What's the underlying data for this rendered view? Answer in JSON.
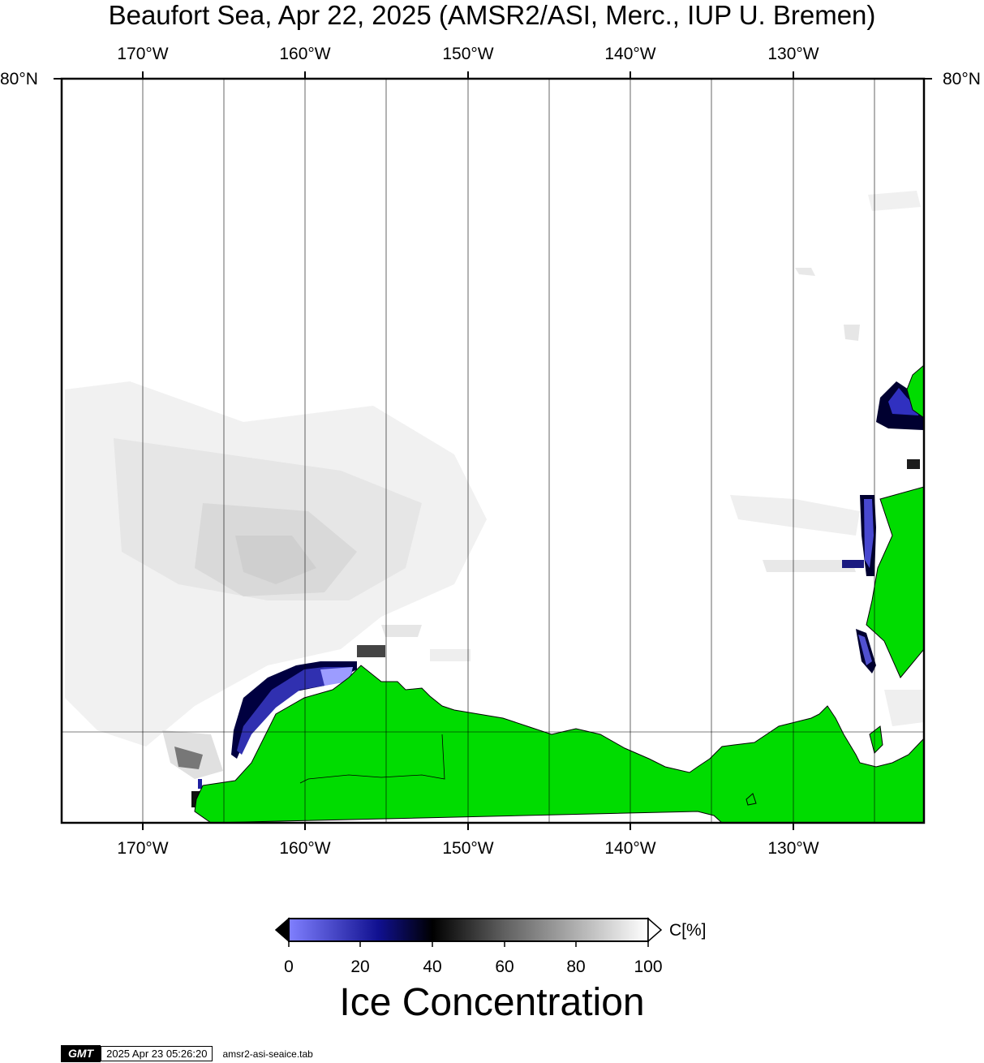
{
  "title": "Beaufort Sea, Apr 22, 2025 (AMSR2/ASI, Merc., IUP U. Bremen)",
  "lon_labels": [
    "170°W",
    "160°W",
    "150°W",
    "140°W",
    "130°W"
  ],
  "lat_labels": {
    "left": "80°N",
    "right": "80°N"
  },
  "colorbar": {
    "ticks": [
      "0",
      "20",
      "40",
      "60",
      "80",
      "100"
    ],
    "unit": "C[%]",
    "title": "Ice Concentration",
    "colors": [
      "#8080ff",
      "#000080",
      "#000000",
      "#808080",
      "#ffffff"
    ]
  },
  "colors": {
    "land": "#00dc00",
    "ocean": "#ffffff",
    "grid": "#000000"
  },
  "footer": {
    "logo": "GMT",
    "timestamp": "2025 Apr 23 05:26:20",
    "file": "amsr2-asi-seaice.tab"
  }
}
